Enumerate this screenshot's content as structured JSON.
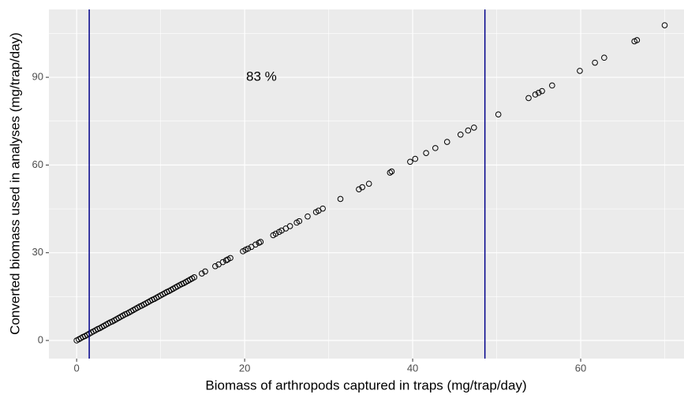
{
  "chart_data": {
    "type": "scatter",
    "x_label": "Biomass of arthropods captured in traps (mg/trap/day)",
    "y_label": "Converted biomass used in analyses (mg/trap/day)",
    "x": [
      0,
      0.25,
      0.5,
      0.75,
      1,
      1.25,
      1.5,
      1.75,
      2,
      2.25,
      2.5,
      2.75,
      3,
      3.25,
      3.5,
      3.75,
      4,
      4.25,
      4.5,
      4.75,
      5,
      5.25,
      5.5,
      5.75,
      6,
      6.25,
      6.5,
      6.75,
      7,
      7.25,
      7.5,
      7.75,
      8,
      8.25,
      8.5,
      8.75,
      9,
      9.25,
      9.5,
      9.75,
      10,
      10.25,
      10.5,
      10.75,
      11,
      11.25,
      11.5,
      11.75,
      12,
      12.25,
      12.5,
      12.75,
      13,
      13.25,
      13.5,
      13.75,
      14,
      14.9,
      15.3,
      16.5,
      16.9,
      17.4,
      17.8,
      18.0,
      18.3,
      19.8,
      20.1,
      20.4,
      20.8,
      21.3,
      21.7,
      21.9,
      23.4,
      23.7,
      24.1,
      24.4,
      24.9,
      25.4,
      26.2,
      26.5,
      27.5,
      28.5,
      28.8,
      29.3,
      31.4,
      33.6,
      34.0,
      34.8,
      37.3,
      37.5,
      39.7,
      40.3,
      41.6,
      42.7,
      44.1,
      45.7,
      46.6,
      47.3,
      50.2,
      53.8,
      54.6,
      55.0,
      55.4,
      56.6,
      59.9,
      61.7,
      62.8,
      66.4,
      66.7,
      70.0
    ],
    "values": [
      0,
      0.4,
      0.8,
      1.2,
      1.5,
      1.9,
      2.3,
      2.7,
      3.1,
      3.5,
      3.9,
      4.2,
      4.6,
      5.0,
      5.4,
      5.8,
      6.2,
      6.5,
      6.9,
      7.3,
      7.7,
      8.1,
      8.5,
      8.9,
      9.2,
      9.6,
      10.0,
      10.4,
      10.8,
      11.2,
      11.6,
      11.9,
      12.3,
      12.7,
      13.1,
      13.5,
      13.9,
      14.2,
      14.6,
      15.0,
      15.4,
      15.8,
      16.2,
      16.6,
      16.9,
      17.3,
      17.7,
      18.1,
      18.5,
      18.9,
      19.3,
      19.6,
      20.0,
      20.4,
      20.8,
      21.2,
      21.6,
      22.9,
      23.6,
      25.4,
      26.0,
      26.8,
      27.4,
      27.7,
      28.2,
      30.5,
      31.0,
      31.4,
      32.0,
      32.8,
      33.4,
      33.7,
      36.0,
      36.5,
      37.1,
      37.6,
      38.3,
      39.1,
      40.3,
      40.8,
      42.4,
      43.9,
      44.4,
      45.1,
      48.4,
      51.7,
      52.4,
      53.6,
      57.4,
      57.8,
      61.1,
      62.1,
      64.1,
      65.8,
      67.9,
      70.4,
      71.8,
      72.8,
      77.3,
      82.9,
      84.1,
      84.7,
      85.3,
      87.2,
      92.2,
      95.0,
      96.7,
      102.3,
      102.7,
      107.8
    ],
    "color": "#000000",
    "xlim": [
      -3.3,
      72.3
    ],
    "ylim": [
      -6.2,
      113.2
    ],
    "xticks": [
      0,
      20,
      40,
      60
    ],
    "yticks": [
      0,
      30,
      60,
      90
    ],
    "xminor": [
      10,
      30,
      50,
      70
    ],
    "yminor": [
      15,
      45,
      75,
      105
    ],
    "grid": true,
    "vlines": [
      1.5,
      48.6
    ],
    "vline_color": "#00008b",
    "annotations": [
      {
        "text": "83 %",
        "x": 22,
        "y": 90
      }
    ]
  }
}
